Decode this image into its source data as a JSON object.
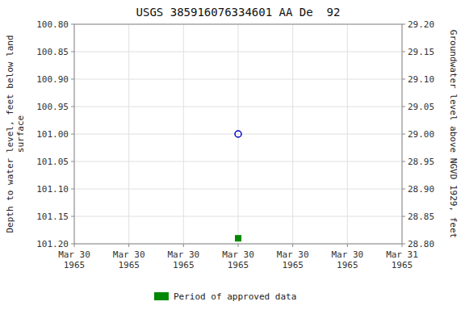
{
  "chart_data": {
    "type": "scatter",
    "title": "USGS 385916076334601 AA De  92",
    "y_label": "Depth to water level, feet below land\nsurface",
    "y2_label": "Groundwater level above NGVD 1929, feet",
    "categories": [
      "Mar 30\n1965",
      "Mar 30\n1965",
      "Mar 30\n1965",
      "Mar 30\n1965",
      "Mar 30\n1965",
      "Mar 30\n1965",
      "Mar 31\n1965"
    ],
    "series": [
      {
        "color": "#0000cc",
        "marker": "circle",
        "values": [
          null,
          null,
          null,
          101.0,
          null,
          null,
          null
        ]
      },
      {
        "name": "Period of approved data",
        "color": "#008800",
        "marker": "square",
        "values": [
          null,
          null,
          null,
          101.19,
          null,
          null,
          null
        ]
      }
    ],
    "ylim": [
      101.2,
      100.8
    ],
    "yticks": [
      {
        "value": 100.8,
        "label": "100.80"
      },
      {
        "value": 100.85,
        "label": "100.85"
      },
      {
        "value": 100.9,
        "label": "100.90"
      },
      {
        "value": 100.95,
        "label": "100.95"
      },
      {
        "value": 101.0,
        "label": "101.00"
      },
      {
        "value": 101.05,
        "label": "101.05"
      },
      {
        "value": 101.1,
        "label": "101.10"
      },
      {
        "value": 101.15,
        "label": "101.15"
      },
      {
        "value": 101.2,
        "label": "101.20"
      }
    ],
    "y2lim": [
      28.8,
      29.2
    ],
    "y2ticks": [
      {
        "value": 29.2,
        "label": "29.20"
      },
      {
        "value": 29.15,
        "label": "29.15"
      },
      {
        "value": 29.1,
        "label": "29.10"
      },
      {
        "value": 29.05,
        "label": "29.05"
      },
      {
        "value": 29.0,
        "label": "29.00"
      },
      {
        "value": 28.95,
        "label": "28.95"
      },
      {
        "value": 28.9,
        "label": "28.90"
      },
      {
        "value": 28.85,
        "label": "28.85"
      },
      {
        "value": 28.8,
        "label": "28.80"
      }
    ],
    "grid": true,
    "legend": "bottom"
  }
}
